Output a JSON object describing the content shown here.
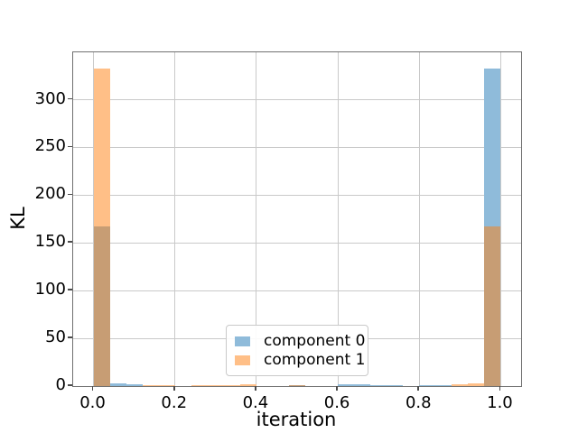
{
  "figure": {
    "background": "#ffffff",
    "text_color": "#000000",
    "grid_color": "#c9c9c9",
    "spine_color": "#707070"
  },
  "chart_data": {
    "type": "bar",
    "subtype": "overlapping-histogram",
    "title": "",
    "xlabel": "iteration",
    "ylabel": "KL",
    "xlim": [
      -0.05,
      1.05
    ],
    "ylim": [
      0,
      349.65
    ],
    "grid": true,
    "legend_position": "lower center",
    "x_ticks": [
      0.0,
      0.2,
      0.4,
      0.6,
      0.8,
      1.0
    ],
    "x_tick_labels": [
      "0.0",
      "0.2",
      "0.4",
      "0.6",
      "0.8",
      "1.0"
    ],
    "y_ticks": [
      0,
      50,
      100,
      150,
      200,
      250,
      300
    ],
    "y_tick_labels": [
      "0",
      "50",
      "100",
      "150",
      "200",
      "250",
      "300"
    ],
    "bins": {
      "start": 0.0,
      "end": 1.0,
      "count": 25,
      "bin_width": 0.04
    },
    "series": [
      {
        "name": "component 0",
        "color": "#1f77b4",
        "alpha": 0.5,
        "values": [
          167,
          2.5,
          2,
          0,
          0,
          0,
          0,
          0,
          0,
          0,
          0,
          0,
          1,
          0,
          0,
          2,
          2,
          1,
          1,
          0,
          1,
          1,
          0,
          0,
          333
        ]
      },
      {
        "name": "component 1",
        "color": "#ff7f0e",
        "alpha": 0.5,
        "values": [
          333,
          0,
          0,
          1,
          1,
          0,
          1,
          1,
          1.2,
          2,
          0,
          0,
          1,
          0,
          0,
          0,
          0,
          0,
          0,
          0,
          0,
          0,
          1.5,
          2.5,
          167
        ]
      }
    ]
  }
}
